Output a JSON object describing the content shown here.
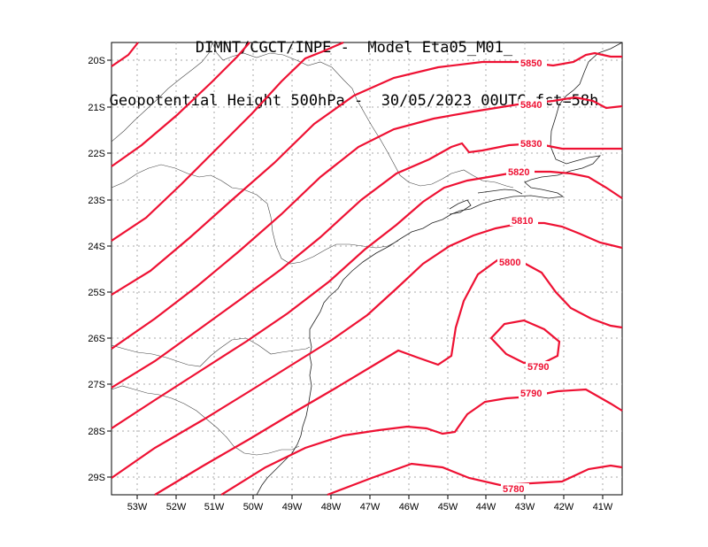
{
  "title": {
    "line1": "DIMNT/CGCT/INPE -  Model Eta05_M01_",
    "line2": "Geopotential Height 500hPa -  30/05/2023 00UTC fct=58h"
  },
  "map": {
    "lon_range": [
      -53.6,
      -40.5
    ],
    "lat_range": [
      -29.4,
      -19.6
    ],
    "grid": "dotted",
    "contour_color": "#ee1133",
    "lon_ticks": [
      "53W",
      "52W",
      "51W",
      "50W",
      "49W",
      "48W",
      "47W",
      "46W",
      "45W",
      "44W",
      "43W",
      "42W",
      "41W"
    ],
    "lat_ticks": [
      "20S",
      "21S",
      "22S",
      "23S",
      "24S",
      "25S",
      "26S",
      "27S",
      "28S",
      "29S"
    ],
    "contour_labels": [
      "5850",
      "5840",
      "5830",
      "5820",
      "5810",
      "5800",
      "5790",
      "5790",
      "5780"
    ]
  }
}
